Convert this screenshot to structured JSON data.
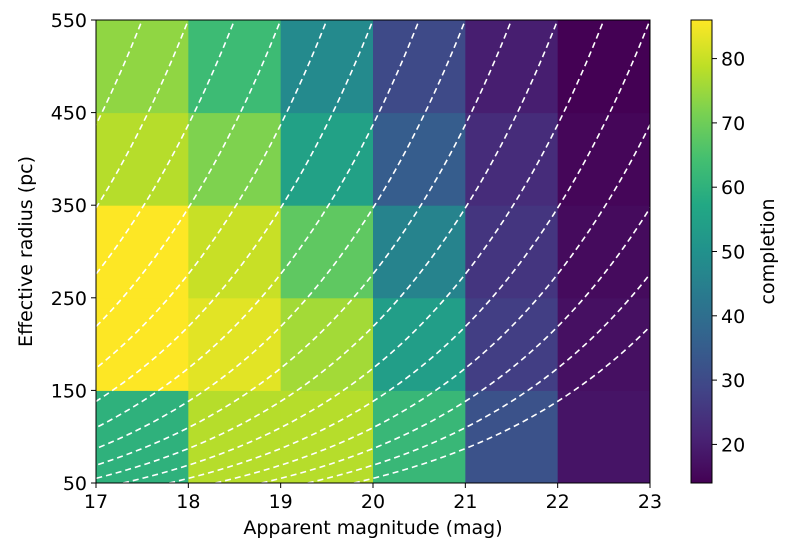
{
  "chart_data": {
    "type": "heatmap",
    "title": "",
    "xlabel": "Apparent magnitude (mag)",
    "ylabel": "Effective radius (pc)",
    "colorbar_label": "completion",
    "colormap": "viridis",
    "xlim": [
      17,
      23
    ],
    "ylim": [
      50,
      550
    ],
    "x_ticks": [
      "17",
      "18",
      "19",
      "20",
      "21",
      "22",
      "23"
    ],
    "y_ticks": [
      "50",
      "150",
      "250",
      "350",
      "450",
      "550"
    ],
    "colorbar_ticks": [
      "20",
      "30",
      "40",
      "50",
      "60",
      "70",
      "80"
    ],
    "colorbar_range": [
      14,
      86
    ],
    "x_edges": [
      17,
      18,
      19,
      20,
      21,
      22,
      23
    ],
    "y_edges": [
      50,
      150,
      250,
      350,
      450,
      550
    ],
    "values": [
      [
        60,
        78,
        78,
        62,
        32,
        18
      ],
      [
        86,
        83,
        76,
        54,
        27,
        17
      ],
      [
        86,
        80,
        68,
        46,
        25,
        16
      ],
      [
        78,
        72,
        55,
        35,
        23,
        15
      ],
      [
        74,
        63,
        48,
        30,
        20,
        14
      ]
    ],
    "contours": {
      "style": "dashed",
      "color": "#ffffff",
      "levels_magnitude_at_rmax": [
        16.0,
        16.5,
        17.0,
        17.5,
        18.0,
        18.5,
        19.0,
        19.5,
        20.0,
        20.5,
        21.0,
        21.5,
        22.0,
        22.5,
        23.0,
        23.5,
        24.0,
        24.5,
        25.0
      ]
    }
  }
}
